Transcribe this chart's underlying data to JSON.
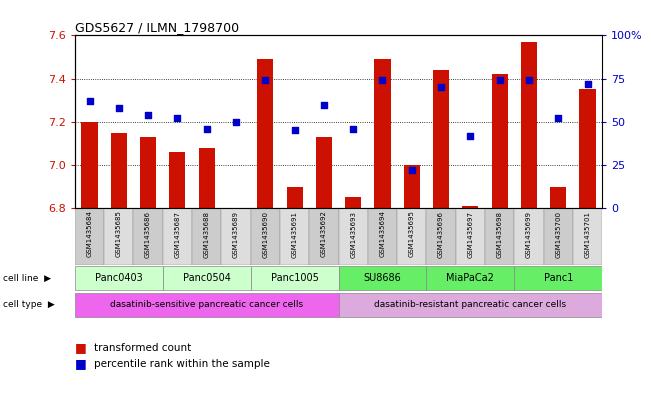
{
  "title": "GDS5627 / ILMN_1798700",
  "samples": [
    "GSM1435684",
    "GSM1435685",
    "GSM1435686",
    "GSM1435687",
    "GSM1435688",
    "GSM1435689",
    "GSM1435690",
    "GSM1435691",
    "GSM1435692",
    "GSM1435693",
    "GSM1435694",
    "GSM1435695",
    "GSM1435696",
    "GSM1435697",
    "GSM1435698",
    "GSM1435699",
    "GSM1435700",
    "GSM1435701"
  ],
  "transformed_count": [
    7.2,
    7.15,
    7.13,
    7.06,
    7.08,
    6.8,
    7.49,
    6.9,
    7.13,
    6.85,
    7.49,
    7.0,
    7.44,
    6.81,
    7.42,
    7.57,
    6.9,
    7.35
  ],
  "percentile_rank": [
    62,
    58,
    54,
    52,
    46,
    50,
    74,
    45,
    60,
    46,
    74,
    22,
    70,
    42,
    74,
    74,
    52,
    72
  ],
  "ylim_left": [
    6.8,
    7.6
  ],
  "ylim_right": [
    0,
    100
  ],
  "yticks_left": [
    6.8,
    7.0,
    7.2,
    7.4,
    7.6
  ],
  "yticks_right": [
    0,
    25,
    50,
    75,
    100
  ],
  "bar_color": "#cc1100",
  "dot_color": "#0000cc",
  "bar_bottom": 6.8,
  "cell_lines": [
    {
      "label": "Panc0403",
      "start": 0,
      "end": 2
    },
    {
      "label": "Panc0504",
      "start": 3,
      "end": 5
    },
    {
      "label": "Panc1005",
      "start": 6,
      "end": 8
    },
    {
      "label": "SU8686",
      "start": 9,
      "end": 11
    },
    {
      "label": "MiaPaCa2",
      "start": 12,
      "end": 14
    },
    {
      "label": "Panc1",
      "start": 15,
      "end": 17
    }
  ],
  "cell_line_colors": [
    "#ccffcc",
    "#ccffcc",
    "#ccffcc",
    "#66ee66",
    "#66ee66",
    "#66ee66"
  ],
  "cell_type_data": [
    {
      "label": "dasatinib-sensitive pancreatic cancer cells",
      "start": 0,
      "end": 8,
      "color": "#ee66ee"
    },
    {
      "label": "dasatinib-resistant pancreatic cancer cells",
      "start": 9,
      "end": 17,
      "color": "#ddaadd"
    }
  ],
  "sample_bg_even": "#cccccc",
  "sample_bg_odd": "#dddddd",
  "legend_bar_label": "transformed count",
  "legend_dot_label": "percentile rank within the sample",
  "bg_color": "#ffffff",
  "axis_color_left": "#cc1100",
  "axis_color_right": "#0000cc",
  "grid_yticks": [
    7.0,
    7.2,
    7.4
  ]
}
